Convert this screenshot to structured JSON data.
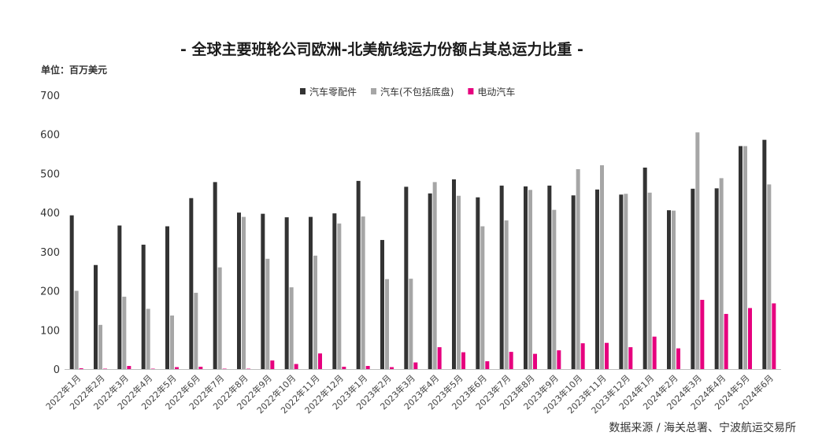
{
  "title": "- 全球主要班轮公司欧洲-北美航线运力份额占其总运力比重 -",
  "unit_label": "单位：百万美元",
  "source": "数据来源 / 海关总署、宁波航运交易所",
  "colors": {
    "series1": "#333333",
    "series2": "#a6a6a6",
    "series3": "#e6007e",
    "axis": "#bfbfbf"
  },
  "chart_data": {
    "type": "bar",
    "title": "- 全球主要班轮公司欧洲-北美航线运力份额占其总运力比重 -",
    "ylabel": "单位：百万美元",
    "ylim": [
      0,
      700
    ],
    "yticks": [
      0,
      100,
      200,
      300,
      400,
      500,
      600,
      700
    ],
    "grid": false,
    "legend_position": "top-center",
    "categories": [
      "2022年1月",
      "2022年2月",
      "2022年3月",
      "2022年4月",
      "2022年5月",
      "2022年6月",
      "2022年7月",
      "2022年8月",
      "2022年9月",
      "2022年10月",
      "2022年11月",
      "2022年12月",
      "2023年1月",
      "2023年2月",
      "2023年3月",
      "2023年4月",
      "2023年5月",
      "2023年6月",
      "2023年7月",
      "2023年8月",
      "2023年9月",
      "2023年10月",
      "2023年11月",
      "2023年12月",
      "2024年1月",
      "2024年2月",
      "2024年3月",
      "2024年4月",
      "2024年5月",
      "2024年6月"
    ],
    "series": [
      {
        "name": "汽车零配件",
        "values": [
          393,
          266,
          367,
          318,
          365,
          437,
          478,
          400,
          397,
          388,
          389,
          398,
          481,
          330,
          466,
          449,
          485,
          439,
          469,
          467,
          469,
          444,
          459,
          446,
          515,
          406,
          461,
          462,
          570,
          586
        ]
      },
      {
        "name": "汽车(不包括底盘)",
        "values": [
          200,
          113,
          185,
          154,
          137,
          195,
          260,
          389,
          282,
          209,
          290,
          372,
          390,
          230,
          231,
          478,
          443,
          365,
          380,
          458,
          407,
          511,
          521,
          448,
          451,
          405,
          605,
          488,
          570,
          472
        ]
      },
      {
        "name": "电动汽车",
        "values": [
          2,
          1,
          8,
          1,
          5,
          6,
          1,
          1,
          22,
          13,
          40,
          6,
          8,
          5,
          17,
          56,
          43,
          20,
          44,
          39,
          48,
          66,
          67,
          56,
          83,
          53,
          177,
          141,
          156,
          168
        ]
      }
    ]
  }
}
